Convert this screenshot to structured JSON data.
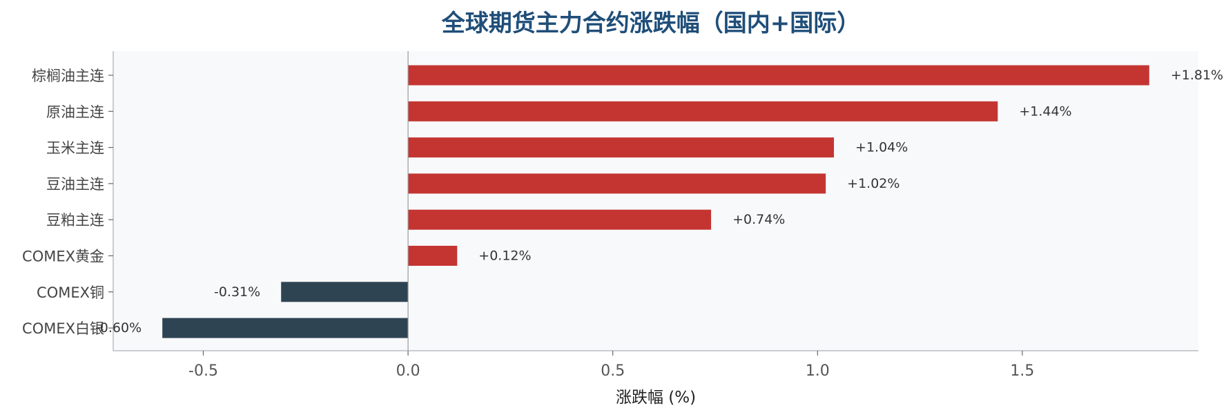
{
  "chart_data": {
    "type": "bar",
    "orientation": "horizontal",
    "title": "全球期货主力合约涨跌幅（国内+国际）",
    "xlabel": "涨跌幅 (%)",
    "ylabel": "",
    "categories": [
      "棕榈油主连",
      "原油主连",
      "玉米主连",
      "豆油主连",
      "豆粕主连",
      "COMEX黄金",
      "COMEX铜",
      "COMEX白银"
    ],
    "values": [
      1.81,
      1.44,
      1.04,
      1.02,
      0.74,
      0.12,
      -0.31,
      -0.6
    ],
    "value_labels": [
      "+1.81%",
      "+1.44%",
      "+1.04%",
      "+1.02%",
      "+0.74%",
      "+0.12%",
      "-0.31%",
      "-0.60%"
    ],
    "xlim": [
      -0.72,
      1.93
    ],
    "xticks": [
      -0.5,
      0.0,
      0.5,
      1.0,
      1.5
    ],
    "xtick_labels": [
      "-0.5",
      "0.0",
      "0.5",
      "1.0",
      "1.5"
    ],
    "grid": false,
    "legend": "none",
    "colors": {
      "positive": "#C43532",
      "negative": "#2E4453",
      "title": "#1F4E79",
      "plot_background": "#F8F9FB",
      "axis": "#B8BCC2",
      "zero_line": "#999999"
    }
  }
}
